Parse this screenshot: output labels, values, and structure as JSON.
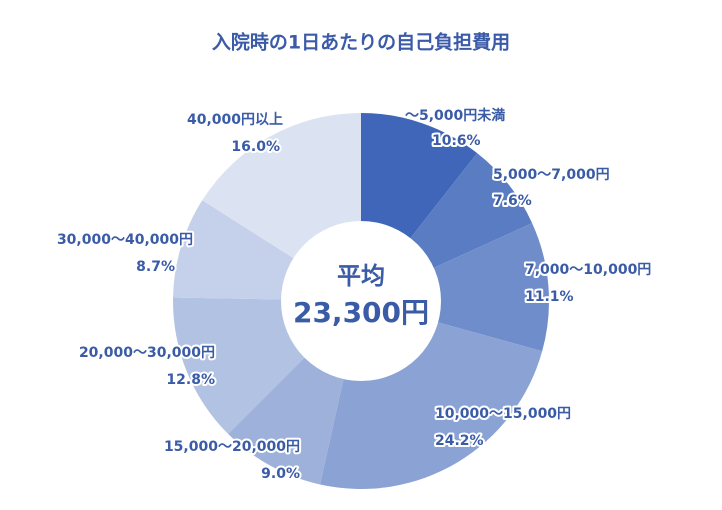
{
  "chart_data": {
    "type": "donut",
    "title": "入院時の1日あたりの自己負担費用",
    "center_label": "平均",
    "center_value": "23,300円",
    "categories": [
      "～5,000円未満",
      "5,000～7,000円",
      "7,000～10,000円",
      "10,000～15,000円",
      "15,000～20,000円",
      "20,000～30,000円",
      "30,000～40,000円",
      "40,000円以上"
    ],
    "values": [
      10.6,
      7.6,
      11.1,
      24.2,
      9.0,
      12.8,
      8.7,
      16.0
    ],
    "value_labels": [
      "10.6%",
      "7.6%",
      "11.1%",
      "24.2%",
      "9.0%",
      "12.8%",
      "8.7%",
      "16.0%"
    ],
    "colors": [
      "#3f66b8",
      "#5a7cc2",
      "#6f8dca",
      "#8aa2d4",
      "#9db1db",
      "#b2c2e3",
      "#c5d1ea",
      "#dbe2f2"
    ]
  }
}
